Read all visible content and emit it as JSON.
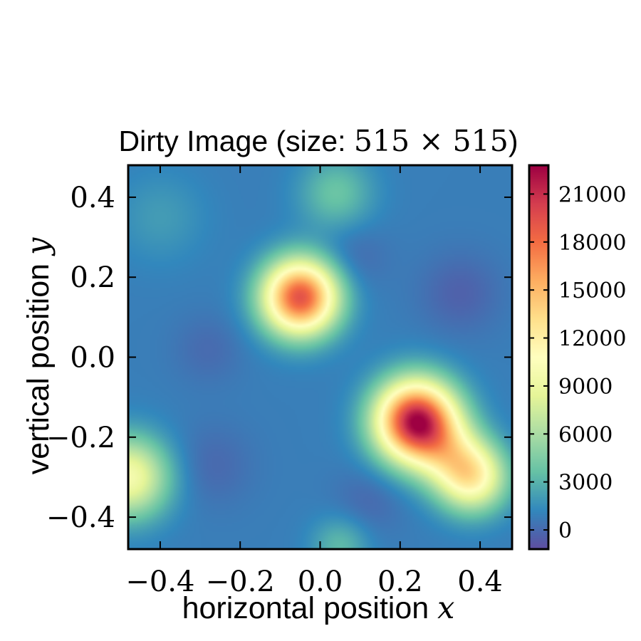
{
  "chart_data": {
    "type": "heatmap",
    "title": "Dirty Image (size: 515 × 515)",
    "title_text": "Dirty Image (size: ",
    "title_math": "515 × 515",
    "title_close": ")",
    "xlabel": "horizontal position x",
    "xlabel_text": "horizontal position ",
    "xlabel_var": "x",
    "ylabel": "vertical position y",
    "ylabel_text": "vertical position ",
    "ylabel_var": "y",
    "xlim": [
      -0.48,
      0.48
    ],
    "ylim": [
      -0.48,
      0.48
    ],
    "x_ticks": [
      -0.4,
      -0.2,
      0.0,
      0.2,
      0.4
    ],
    "y_ticks": [
      -0.4,
      -0.2,
      0.0,
      0.2,
      0.4
    ],
    "x_tick_labels": [
      "−0.4",
      "−0.2",
      "0.0",
      "0.2",
      "0.4"
    ],
    "y_tick_labels": [
      "−0.4",
      "−0.2",
      "0.0",
      "0.2",
      "0.4"
    ],
    "colormap": "Spectral_r",
    "colorbar": {
      "vmin": -1200,
      "vmax": 22800,
      "ticks": [
        0,
        3000,
        6000,
        9000,
        12000,
        15000,
        18000,
        21000
      ],
      "tick_labels": [
        "0",
        "3000",
        "6000",
        "9000",
        "12000",
        "15000",
        "18000",
        "21000"
      ]
    },
    "background_level": 800,
    "sources": [
      {
        "x": -0.05,
        "y": 0.15,
        "peak": 18500,
        "sigma": 0.065
      },
      {
        "x": 0.24,
        "y": -0.16,
        "peak": 21500,
        "sigma": 0.07
      },
      {
        "x": 0.38,
        "y": -0.3,
        "peak": 10500,
        "sigma": 0.06
      },
      {
        "x": 0.32,
        "y": -0.24,
        "peak": 5000,
        "sigma": 0.06
      },
      {
        "x": 0.04,
        "y": 0.41,
        "peak": 3000,
        "sigma": 0.065
      },
      {
        "x": -0.48,
        "y": -0.3,
        "peak": 9000,
        "sigma": 0.07
      },
      {
        "x": -0.4,
        "y": 0.35,
        "peak": 1200,
        "sigma": 0.08
      },
      {
        "x": 0.05,
        "y": -0.47,
        "peak": 2500,
        "sigma": 0.05
      },
      {
        "x": 0.35,
        "y": 0.16,
        "peak": -1200,
        "sigma": 0.07
      },
      {
        "x": -0.27,
        "y": -0.27,
        "peak": -900,
        "sigma": 0.07
      },
      {
        "x": 0.08,
        "y": 0.25,
        "peak": -900,
        "sigma": 0.06
      },
      {
        "x": 0.12,
        "y": -0.36,
        "peak": -900,
        "sigma": 0.06
      },
      {
        "x": -0.28,
        "y": 0.02,
        "peak": -800,
        "sigma": 0.06
      }
    ]
  }
}
